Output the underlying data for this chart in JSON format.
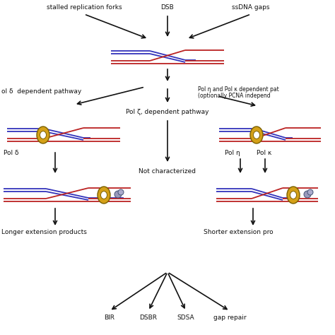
{
  "bg_color": "#ffffff",
  "blue": "#3333bb",
  "red": "#bb2222",
  "yellow_outer": "#d4a017",
  "yellow_inner": "#f5d060",
  "gray_pol": "#9999bb",
  "black": "#111111",
  "top_labels": {
    "left": "stalled replication forks",
    "center": "DSB",
    "right": "ssDNA gaps"
  },
  "pathway_labels": {
    "left": "ol δ  dependent pathway",
    "center": "Pol ζ, dependent pathway",
    "right_line1": "Pol η and Pol κ dependent pat",
    "right_line2": "(optionally PCNA independ"
  },
  "pol_labels": {
    "left": "Pol δ",
    "center": "Not characterized",
    "right1": "Pol η",
    "right2": "Pol κ"
  },
  "product_labels": {
    "left": "Longer extension products",
    "right": "Shorter extension pro"
  },
  "bottom_labels": [
    "BIR",
    "DSBR",
    "SDSA",
    "gap repair"
  ]
}
